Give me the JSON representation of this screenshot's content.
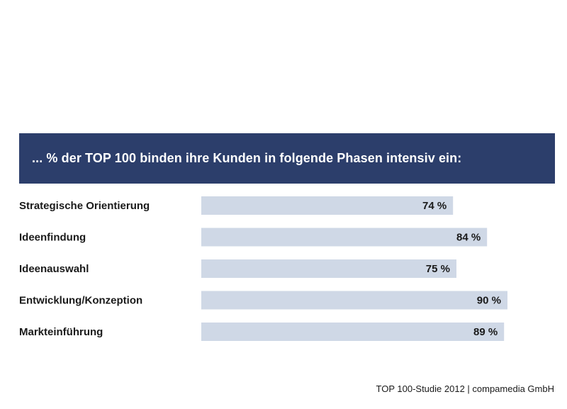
{
  "colors": {
    "header_bg": "#2c3e6b",
    "bar_fill": "#cfd8e6",
    "text": "#1a1a1a",
    "header_text": "#ffffff"
  },
  "chart_data": {
    "type": "bar",
    "orientation": "horizontal",
    "title": "... % der TOP 100 binden ihre Kunden in folgende Phasen intensiv ein:",
    "categories": [
      "Strategische Orientierung",
      "Ideenfindung",
      "Ideenauswahl",
      "Entwicklung/Konzeption",
      "Markteinführung"
    ],
    "values": [
      74,
      84,
      75,
      90,
      89
    ],
    "value_labels": [
      "74 %",
      "84 %",
      "75 %",
      "90 %",
      "89 %"
    ],
    "unit": "%",
    "xlim": [
      0,
      100
    ],
    "grid": false,
    "legend": "none"
  },
  "footer": {
    "source": "TOP 100-Studie 2012 | compamedia GmbH"
  }
}
